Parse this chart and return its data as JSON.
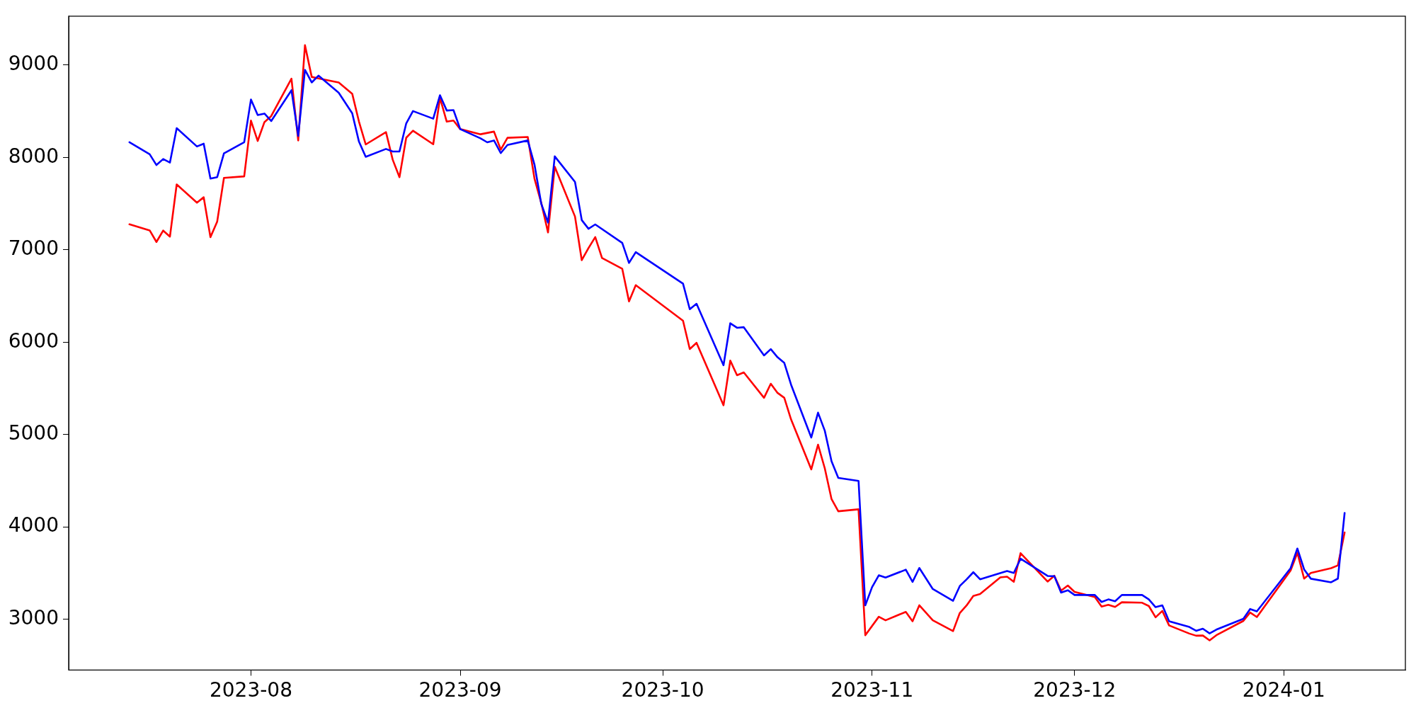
{
  "chart_data": {
    "type": "line",
    "xlim": [
      "2023-07-05",
      "2024-01-19"
    ],
    "xticks": [
      "2023-08",
      "2023-09",
      "2023-10",
      "2023-11",
      "2023-12",
      "2024-01"
    ],
    "ylim": [
      2450,
      9530
    ],
    "yticks": [
      3000,
      4000,
      5000,
      6000,
      7000,
      8000,
      9000
    ],
    "marker": "none",
    "line_style": "solid",
    "series": [
      {
        "color": "#ff0000",
        "x": [
          "2023-07-14",
          "2023-07-17",
          "2023-07-18",
          "2023-07-19",
          "2023-07-20",
          "2023-07-21",
          "2023-07-24",
          "2023-07-25",
          "2023-07-26",
          "2023-07-27",
          "2023-07-28",
          "2023-07-31",
          "2023-08-01",
          "2023-08-02",
          "2023-08-03",
          "2023-08-04",
          "2023-08-07",
          "2023-08-08",
          "2023-08-09",
          "2023-08-10",
          "2023-08-11",
          "2023-08-14",
          "2023-08-16",
          "2023-08-17",
          "2023-08-18",
          "2023-08-21",
          "2023-08-22",
          "2023-08-23",
          "2023-08-24",
          "2023-08-25",
          "2023-08-28",
          "2023-08-29",
          "2023-08-30",
          "2023-08-31",
          "2023-09-01",
          "2023-09-04",
          "2023-09-06",
          "2023-09-07",
          "2023-09-08",
          "2023-09-11",
          "2023-09-12",
          "2023-09-13",
          "2023-09-14",
          "2023-09-15",
          "2023-09-18",
          "2023-09-19",
          "2023-09-20",
          "2023-09-21",
          "2023-09-22",
          "2023-09-25",
          "2023-09-26",
          "2023-09-27",
          "2023-10-04",
          "2023-10-05",
          "2023-10-06",
          "2023-10-10",
          "2023-10-11",
          "2023-10-12",
          "2023-10-13",
          "2023-10-16",
          "2023-10-17",
          "2023-10-18",
          "2023-10-19",
          "2023-10-20",
          "2023-10-23",
          "2023-10-24",
          "2023-10-25",
          "2023-10-26",
          "2023-10-27",
          "2023-10-30",
          "2023-10-31",
          "2023-11-02",
          "2023-11-03",
          "2023-11-06",
          "2023-11-07",
          "2023-11-08",
          "2023-11-10",
          "2023-11-13",
          "2023-11-14",
          "2023-11-15",
          "2023-11-16",
          "2023-11-17",
          "2023-11-20",
          "2023-11-21",
          "2023-11-22",
          "2023-11-23",
          "2023-11-27",
          "2023-11-28",
          "2023-11-29",
          "2023-11-30",
          "2023-12-01",
          "2023-12-04",
          "2023-12-05",
          "2023-12-06",
          "2023-12-07",
          "2023-12-08",
          "2023-12-11",
          "2023-12-12",
          "2023-12-13",
          "2023-12-14",
          "2023-12-15",
          "2023-12-18",
          "2023-12-19",
          "2023-12-20",
          "2023-12-21",
          "2023-12-22",
          "2023-12-26",
          "2023-12-27",
          "2023-12-28",
          "2024-01-02",
          "2024-01-03",
          "2024-01-04",
          "2024-01-05",
          "2024-01-08",
          "2024-01-09",
          "2024-01-10"
        ],
        "values": [
          7276,
          7210,
          7085,
          7208,
          7143,
          7708,
          7510,
          7569,
          7137,
          7306,
          7779,
          7795,
          8399,
          8179,
          8383,
          8448,
          8853,
          8184,
          9215,
          8872,
          8856,
          8812,
          8690,
          8388,
          8141,
          8274,
          7975,
          7787,
          8214,
          8290,
          8143,
          8645,
          8388,
          8400,
          8307,
          8251,
          8280,
          8085,
          8213,
          8222,
          7770,
          7508,
          7188,
          7899,
          7360,
          6888,
          7019,
          7138,
          6911,
          6794,
          6442,
          6617,
          6232,
          5926,
          5993,
          5317,
          5800,
          5642,
          5673,
          5398,
          5550,
          5451,
          5398,
          5164,
          4623,
          4890,
          4634,
          4301,
          4169,
          4190,
          2827,
          3027,
          2989,
          3080,
          2979,
          3151,
          2989,
          2872,
          3068,
          3149,
          3253,
          3273,
          3454,
          3461,
          3405,
          3715,
          3408,
          3471,
          3309,
          3365,
          3296,
          3240,
          3138,
          3156,
          3133,
          3184,
          3179,
          3143,
          3021,
          3090,
          2933,
          2845,
          2822,
          2824,
          2771,
          2827,
          2982,
          3073,
          3024,
          3528,
          3720,
          3440,
          3501,
          3553,
          3583,
          3940
        ]
      },
      {
        "color": "#0000ff",
        "x": [
          "2023-07-14",
          "2023-07-17",
          "2023-07-18",
          "2023-07-19",
          "2023-07-20",
          "2023-07-21",
          "2023-07-24",
          "2023-07-25",
          "2023-07-26",
          "2023-07-27",
          "2023-07-28",
          "2023-07-31",
          "2023-08-01",
          "2023-08-02",
          "2023-08-03",
          "2023-08-04",
          "2023-08-07",
          "2023-08-08",
          "2023-08-09",
          "2023-08-10",
          "2023-08-11",
          "2023-08-14",
          "2023-08-16",
          "2023-08-17",
          "2023-08-18",
          "2023-08-21",
          "2023-08-22",
          "2023-08-23",
          "2023-08-24",
          "2023-08-25",
          "2023-08-28",
          "2023-08-29",
          "2023-08-30",
          "2023-08-31",
          "2023-09-01",
          "2023-09-04",
          "2023-09-05",
          "2023-09-06",
          "2023-09-07",
          "2023-09-08",
          "2023-09-11",
          "2023-09-12",
          "2023-09-13",
          "2023-09-14",
          "2023-09-15",
          "2023-09-18",
          "2023-09-19",
          "2023-09-20",
          "2023-09-21",
          "2023-09-25",
          "2023-09-26",
          "2023-09-27",
          "2023-10-04",
          "2023-10-05",
          "2023-10-06",
          "2023-10-10",
          "2023-10-11",
          "2023-10-12",
          "2023-10-13",
          "2023-10-16",
          "2023-10-17",
          "2023-10-18",
          "2023-10-19",
          "2023-10-20",
          "2023-10-23",
          "2023-10-24",
          "2023-10-25",
          "2023-10-26",
          "2023-10-27",
          "2023-10-30",
          "2023-10-31",
          "2023-11-01",
          "2023-11-02",
          "2023-11-03",
          "2023-11-06",
          "2023-11-07",
          "2023-11-08",
          "2023-11-10",
          "2023-11-13",
          "2023-11-14",
          "2023-11-15",
          "2023-11-16",
          "2023-11-17",
          "2023-11-21",
          "2023-11-22",
          "2023-11-23",
          "2023-11-27",
          "2023-11-28",
          "2023-11-29",
          "2023-11-30",
          "2023-12-01",
          "2023-12-04",
          "2023-12-05",
          "2023-12-06",
          "2023-12-07",
          "2023-12-08",
          "2023-12-11",
          "2023-12-12",
          "2023-12-13",
          "2023-12-14",
          "2023-12-15",
          "2023-12-18",
          "2023-12-19",
          "2023-12-20",
          "2023-12-21",
          "2023-12-22",
          "2023-12-26",
          "2023-12-27",
          "2023-12-28",
          "2024-01-02",
          "2024-01-03",
          "2024-01-04",
          "2024-01-05",
          "2024-01-08",
          "2024-01-09",
          "2024-01-10"
        ],
        "values": [
          8165,
          8035,
          7918,
          7983,
          7945,
          8317,
          8119,
          8149,
          7771,
          7787,
          8045,
          8165,
          8627,
          8459,
          8475,
          8394,
          8728,
          8233,
          8948,
          8812,
          8886,
          8701,
          8478,
          8171,
          8007,
          8092,
          8064,
          8064,
          8369,
          8502,
          8420,
          8674,
          8508,
          8513,
          8307,
          8207,
          8164,
          8184,
          8047,
          8135,
          8184,
          7922,
          7499,
          7295,
          8012,
          7735,
          7322,
          7228,
          7275,
          7074,
          6858,
          6975,
          6634,
          6357,
          6416,
          5750,
          6205,
          6156,
          6162,
          5857,
          5925,
          5837,
          5776,
          5541,
          4968,
          5237,
          5041,
          4711,
          4531,
          4498,
          3151,
          3347,
          3476,
          3451,
          3537,
          3405,
          3555,
          3327,
          3200,
          3360,
          3431,
          3509,
          3433,
          3522,
          3501,
          3656,
          3469,
          3466,
          3289,
          3314,
          3263,
          3263,
          3187,
          3215,
          3195,
          3263,
          3263,
          3215,
          3131,
          3151,
          2979,
          2916,
          2875,
          2898,
          2847,
          2888,
          3005,
          3111,
          3085,
          3553,
          3766,
          3540,
          3439,
          3400,
          3440,
          4151
        ]
      }
    ]
  }
}
